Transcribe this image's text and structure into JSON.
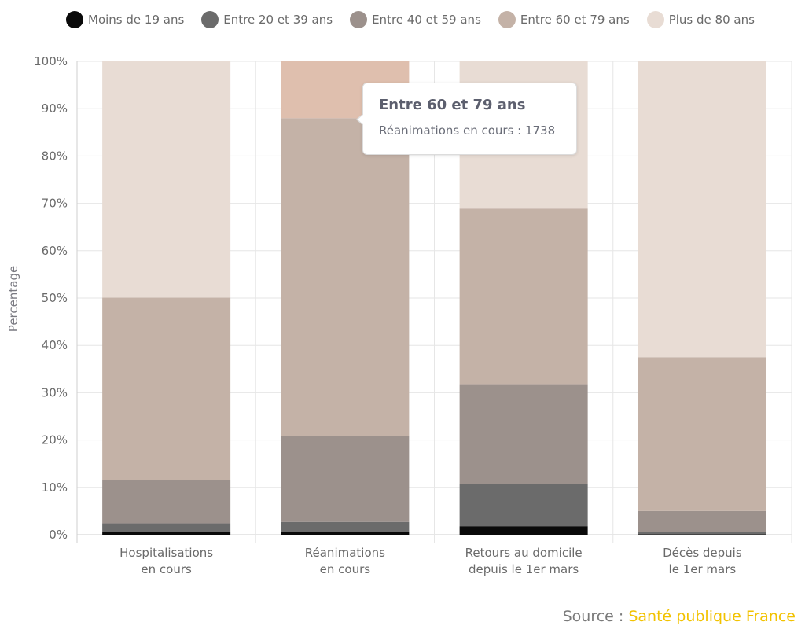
{
  "legend": [
    {
      "label": "Moins de 19 ans",
      "color": "#0a0a0a"
    },
    {
      "label": "Entre 20 et 39 ans",
      "color": "#6b6b6b"
    },
    {
      "label": "Entre 40 et 59 ans",
      "color": "#9c918c"
    },
    {
      "label": "Entre 60 et 79 ans",
      "color": "#c4b2a7"
    },
    {
      "label": "Plus de 80 ans",
      "color": "#e8dcd4"
    }
  ],
  "highlight_color": "#dfbfae",
  "tooltip": {
    "title": "Entre 60 et 79 ans",
    "line": "Réanimations en cours : 1738"
  },
  "source": {
    "prefix": "Source : ",
    "name": "Santé publique France"
  },
  "chart_data": {
    "type": "bar",
    "stacked": true,
    "title": "",
    "ylabel": "Percentage",
    "xlabel": "",
    "ylim": [
      0,
      100
    ],
    "yticks": [
      "0%",
      "10%",
      "20%",
      "30%",
      "40%",
      "50%",
      "60%",
      "70%",
      "80%",
      "90%",
      "100%"
    ],
    "grid": true,
    "legend_position": "top",
    "categories": [
      [
        "Hospitalisations",
        "en cours"
      ],
      [
        "Réanimations",
        "en cours"
      ],
      [
        "Retours au domicile",
        "depuis le 1er mars"
      ],
      [
        "Décès depuis",
        "le 1er mars"
      ]
    ],
    "series": [
      {
        "name": "Moins de 19 ans",
        "values": [
          0.5,
          0.5,
          1.8,
          0.1
        ]
      },
      {
        "name": "Entre 20 et 39 ans",
        "values": [
          1.9,
          2.2,
          8.9,
          0.4
        ]
      },
      {
        "name": "Entre 40 et 59 ans",
        "values": [
          9.2,
          18.1,
          21.1,
          4.5
        ]
      },
      {
        "name": "Entre 60 et 79 ans",
        "values": [
          38.5,
          67.2,
          37.1,
          32.5
        ]
      },
      {
        "name": "Plus de 80 ans",
        "values": [
          49.9,
          12.0,
          31.1,
          62.5
        ]
      }
    ]
  }
}
